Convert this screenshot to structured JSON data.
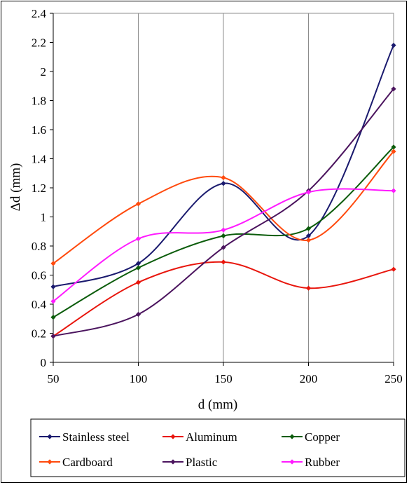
{
  "chart_data": {
    "type": "line",
    "xlabel": "d (mm)",
    "ylabel": "Δd (mm)",
    "x": [
      50,
      100,
      150,
      200,
      250
    ],
    "xlim": [
      50,
      250
    ],
    "ylim": [
      0,
      2.4
    ],
    "x_ticks": [
      "50",
      "100",
      "150",
      "200",
      "250"
    ],
    "y_ticks": [
      "0",
      "0.2",
      "0.4",
      "0.6",
      "0.8",
      "1",
      "1.2",
      "1.4",
      "1.6",
      "1.8",
      "2",
      "2.2",
      "2.4"
    ],
    "grid": "vertical",
    "legend_position": "bottom",
    "series": [
      {
        "name": "Stainless steel",
        "color": "#1a1a6e",
        "values": [
          0.52,
          0.68,
          1.23,
          0.87,
          2.18
        ]
      },
      {
        "name": "Aluminum",
        "color": "#e8150c",
        "values": [
          0.18,
          0.55,
          0.69,
          0.51,
          0.64
        ]
      },
      {
        "name": "Copper",
        "color": "#0b5c0b",
        "values": [
          0.31,
          0.65,
          0.87,
          0.92,
          1.48
        ]
      },
      {
        "name": "Cardboard",
        "color": "#ff4a0d",
        "values": [
          0.68,
          1.09,
          1.27,
          0.84,
          1.45
        ]
      },
      {
        "name": "Plastic",
        "color": "#4b145e",
        "values": [
          0.18,
          0.33,
          0.79,
          1.18,
          1.88
        ]
      },
      {
        "name": "Rubber",
        "color": "#ff1aff",
        "values": [
          0.42,
          0.85,
          0.91,
          1.17,
          1.18
        ]
      }
    ]
  }
}
